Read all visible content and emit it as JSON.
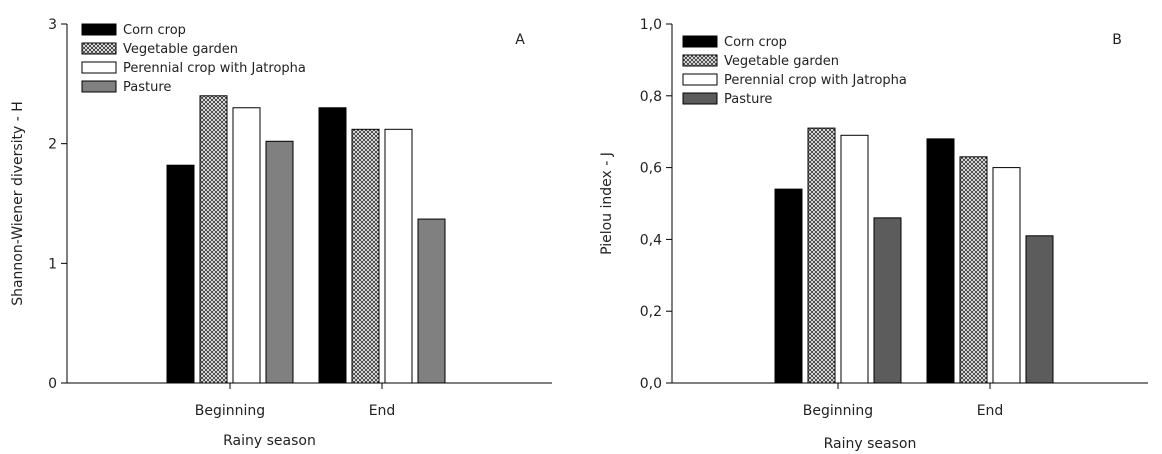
{
  "chart_data": [
    {
      "type": "bar",
      "panel_label": "A",
      "categories": [
        "Beginning",
        "End"
      ],
      "series": [
        {
          "name": "Corn crop",
          "values": [
            1.82,
            2.3
          ],
          "pattern": "solid-black"
        },
        {
          "name": "Vegetable garden",
          "values": [
            2.4,
            2.12
          ],
          "pattern": "crosshatch"
        },
        {
          "name": "Perennial crop with Jatropha",
          "values": [
            2.3,
            2.12
          ],
          "pattern": "white"
        },
        {
          "name": "Pasture",
          "values": [
            2.02,
            1.37
          ],
          "pattern": "gray"
        }
      ],
      "xlabel": "Rainy season",
      "ylabel": "Shannon-Wiener diversity - H",
      "ylim": [
        0,
        3
      ],
      "yticks": [
        "0",
        "1",
        "2",
        "3"
      ],
      "grid": false,
      "legend": "top-left"
    },
    {
      "type": "bar",
      "panel_label": "B",
      "categories": [
        "Beginning",
        "End"
      ],
      "series": [
        {
          "name": "Corn crop",
          "values": [
            0.54,
            0.68
          ],
          "pattern": "solid-black"
        },
        {
          "name": "Vegetable garden",
          "values": [
            0.71,
            0.63
          ],
          "pattern": "crosshatch"
        },
        {
          "name": "Perennial crop with Jatropha",
          "values": [
            0.69,
            0.6
          ],
          "pattern": "white"
        },
        {
          "name": "Pasture",
          "values": [
            0.46,
            0.41
          ],
          "pattern": "gray"
        }
      ],
      "xlabel": "Rainy season",
      "ylabel": "Pielou index - J",
      "ylim": [
        0,
        1
      ],
      "yticks": [
        "0,0",
        "0,2",
        "0,4",
        "0,6",
        "0,8",
        "1,0"
      ],
      "grid": false,
      "legend": "top-left"
    }
  ],
  "colors": {
    "solid-black": "#000000",
    "gray-A": "#808080",
    "gray-B": "#5c5c5c",
    "white": "#ffffff"
  }
}
